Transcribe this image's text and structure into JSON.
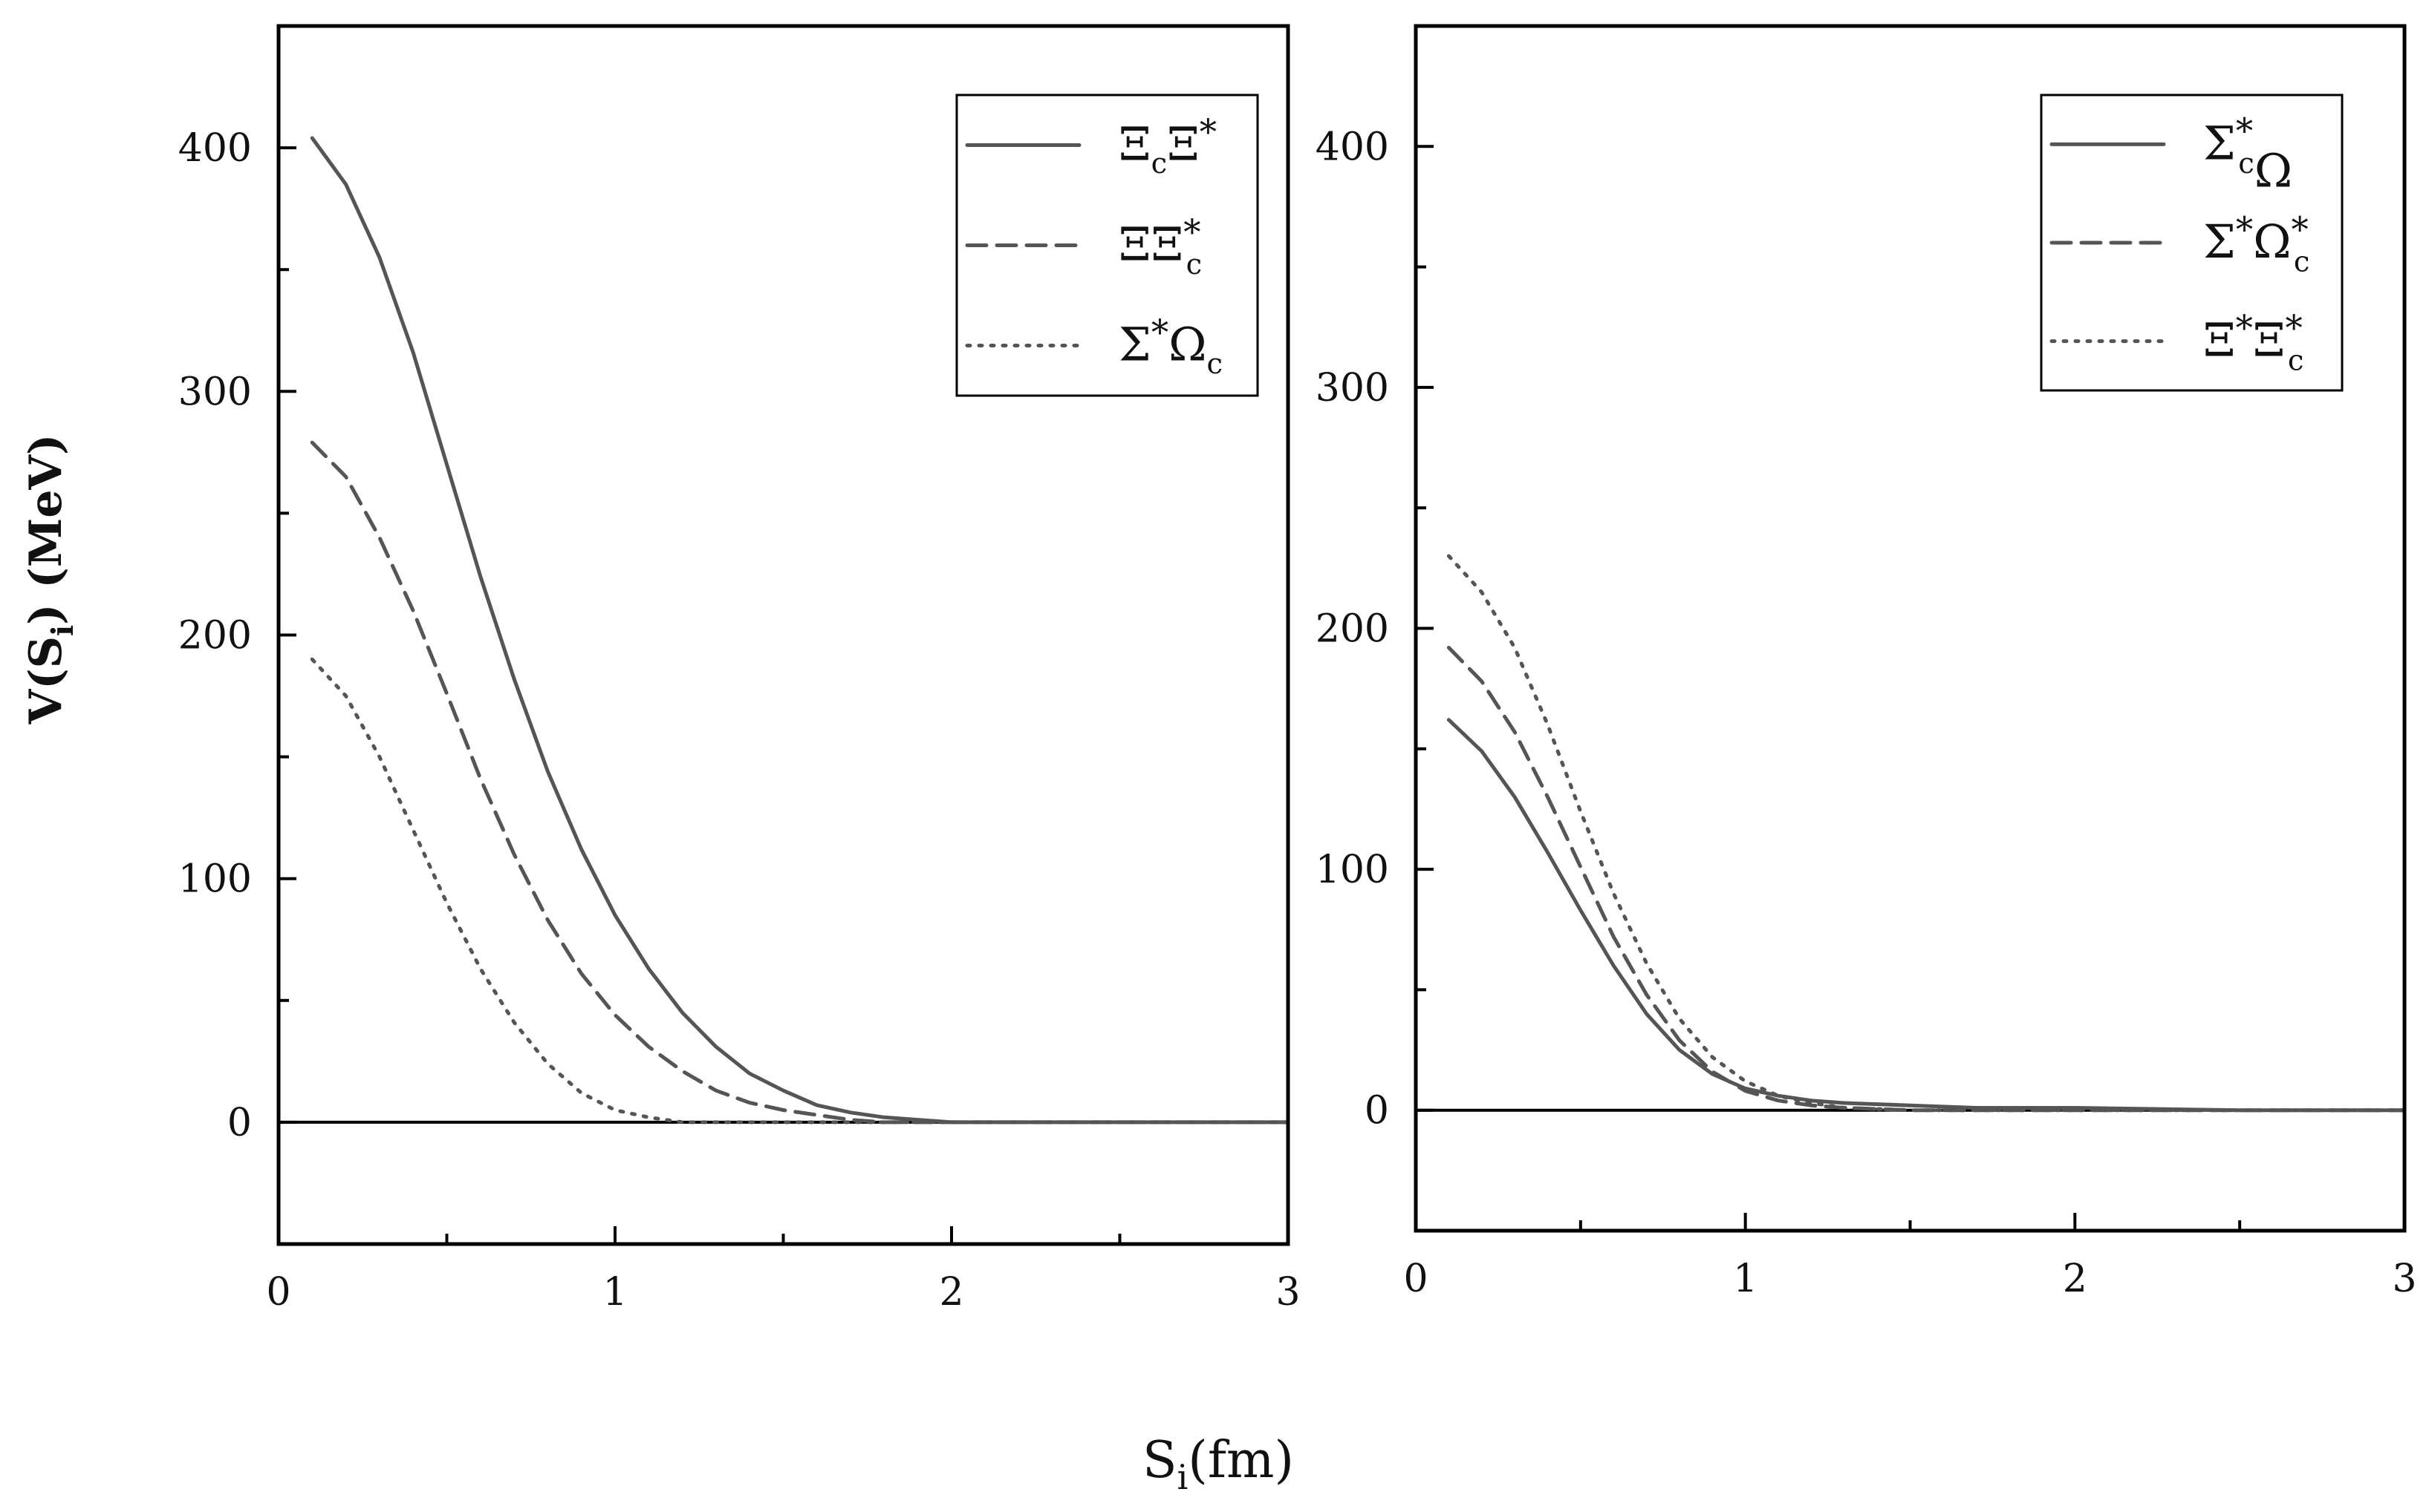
{
  "figure": {
    "ylabel": "V(S_i) (MeV)",
    "xlabel": "S_i(fm)"
  },
  "chart_data": [
    {
      "type": "line",
      "xlim": [
        0,
        3
      ],
      "ylim": [
        -50,
        450
      ],
      "xticks": [
        0,
        1,
        2,
        3
      ],
      "yticks": [
        0,
        100,
        200,
        300,
        400
      ],
      "legend_position": "top-right",
      "grid": false,
      "series": [
        {
          "name": "Ξ_c Ξ*",
          "style": "solid",
          "x": [
            0.1,
            0.2,
            0.3,
            0.4,
            0.5,
            0.6,
            0.7,
            0.8,
            0.9,
            1.0,
            1.1,
            1.2,
            1.3,
            1.4,
            1.5,
            1.6,
            1.7,
            1.8,
            1.9,
            2.0,
            2.2,
            2.5,
            3.0
          ],
          "y": [
            404,
            385,
            355,
            316,
            270,
            224,
            182,
            144,
            112,
            85,
            63,
            45,
            31,
            20,
            13,
            7,
            4,
            2,
            1,
            0,
            0,
            0,
            0
          ]
        },
        {
          "name": "Ξ Ξ_c*",
          "style": "dashed",
          "x": [
            0.1,
            0.2,
            0.3,
            0.4,
            0.5,
            0.6,
            0.7,
            0.8,
            0.9,
            1.0,
            1.1,
            1.2,
            1.3,
            1.4,
            1.5,
            1.6,
            1.7,
            1.8,
            1.9,
            2.0,
            2.2,
            2.5,
            3.0
          ],
          "y": [
            279,
            265,
            240,
            210,
            176,
            141,
            110,
            83,
            61,
            44,
            31,
            21,
            13,
            8,
            5,
            3,
            1,
            0,
            0,
            0,
            0,
            0,
            0
          ]
        },
        {
          "name": "Σ* Ω_c",
          "style": "dotted",
          "x": [
            0.1,
            0.2,
            0.3,
            0.4,
            0.5,
            0.6,
            0.7,
            0.8,
            0.9,
            1.0,
            1.1,
            1.2,
            1.3,
            1.4,
            1.5,
            1.6,
            1.8,
            2.0,
            2.5,
            3.0
          ],
          "y": [
            190,
            175,
            150,
            120,
            90,
            63,
            41,
            24,
            12,
            5,
            2,
            0,
            0,
            0,
            0,
            0,
            0,
            0,
            0,
            0
          ]
        }
      ]
    },
    {
      "type": "line",
      "xlim": [
        0,
        3
      ],
      "ylim": [
        -50,
        450
      ],
      "xticks": [
        0,
        1,
        2,
        3
      ],
      "yticks": [
        0,
        100,
        200,
        300,
        400
      ],
      "legend_position": "top-right",
      "grid": false,
      "series": [
        {
          "name": "Σ_c* Ω",
          "style": "solid",
          "x": [
            0.1,
            0.2,
            0.3,
            0.4,
            0.5,
            0.6,
            0.7,
            0.8,
            0.9,
            1.0,
            1.1,
            1.2,
            1.3,
            1.5,
            1.7,
            2.0,
            2.5,
            3.0
          ],
          "y": [
            162,
            149,
            130,
            107,
            83,
            60,
            40,
            25,
            15,
            9,
            6,
            4,
            3,
            2,
            1,
            1,
            0,
            0
          ]
        },
        {
          "name": "Σ* Ω_c*",
          "style": "dashed",
          "x": [
            0.1,
            0.2,
            0.3,
            0.4,
            0.5,
            0.6,
            0.7,
            0.8,
            0.9,
            1.0,
            1.1,
            1.2,
            1.3,
            1.5,
            1.7,
            2.0,
            2.5,
            3.0
          ],
          "y": [
            192,
            178,
            157,
            130,
            101,
            72,
            48,
            29,
            16,
            8,
            4,
            2,
            1,
            0,
            0,
            0,
            0,
            0
          ]
        },
        {
          "name": "Ξ* Ξ_c*",
          "style": "dotted",
          "x": [
            0.1,
            0.2,
            0.3,
            0.4,
            0.5,
            0.6,
            0.7,
            0.8,
            0.9,
            1.0,
            1.1,
            1.2,
            1.3,
            1.5,
            1.7,
            2.0,
            2.5,
            3.0
          ],
          "y": [
            230,
            215,
            192,
            160,
            124,
            90,
            61,
            38,
            22,
            12,
            6,
            3,
            1,
            0,
            0,
            0,
            0,
            0
          ]
        }
      ]
    }
  ]
}
